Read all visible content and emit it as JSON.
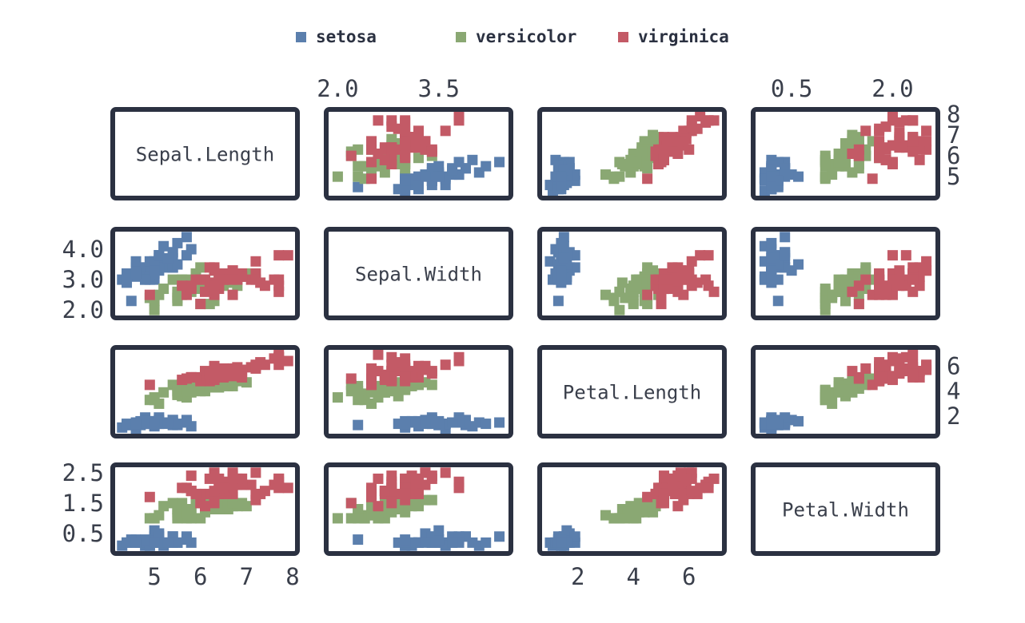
{
  "legend": {
    "items": [
      {
        "label": "setosa",
        "color": "#5b7fad"
      },
      {
        "label": "versicolor",
        "color": "#8aa873"
      },
      {
        "label": "virginica",
        "color": "#c35a66"
      }
    ]
  },
  "chart_data": {
    "type": "scatter",
    "subtype": "scatterplot-matrix",
    "variables": [
      "Sepal.Length",
      "Sepal.Width",
      "Petal.Length",
      "Petal.Width"
    ],
    "axis_ranges": {
      "Sepal.Length": [
        4.2,
        8.0
      ],
      "Sepal.Width": [
        1.9,
        4.5
      ],
      "Petal.Length": [
        0.8,
        7.1
      ],
      "Petal.Width": [
        0.0,
        2.6
      ]
    },
    "tick_labels": {
      "top_Sepal.Width": [
        "2.0",
        "3.5"
      ],
      "top_Petal.Width": [
        "0.5",
        "2.0"
      ],
      "right_Sepal.Length": [
        "8",
        "7",
        "6",
        "5"
      ],
      "right_Petal.Length": [
        "6",
        "4",
        "2"
      ],
      "left_Sepal.Width": [
        "4.0",
        "3.0",
        "2.0"
      ],
      "left_Petal.Width": [
        "2.5",
        "1.5",
        "0.5"
      ],
      "bottom_Sepal.Length": [
        "5",
        "6",
        "7",
        "8"
      ],
      "bottom_Petal.Length": [
        "2",
        "4",
        "6"
      ]
    },
    "tick_values": {
      "top_Sepal.Width": [
        2.0,
        3.5
      ],
      "top_Petal.Width": [
        0.5,
        2.0
      ],
      "right_Sepal.Length": [
        8,
        7,
        6,
        5
      ],
      "right_Petal.Length": [
        6,
        4,
        2
      ],
      "left_Sepal.Width": [
        4.0,
        3.0,
        2.0
      ],
      "left_Petal.Width": [
        2.5,
        1.5,
        0.5
      ],
      "bottom_Sepal.Length": [
        5,
        6,
        7,
        8
      ],
      "bottom_Petal.Length": [
        2,
        4,
        6
      ]
    },
    "grid": false,
    "legend_position": "top",
    "series": [
      {
        "name": "setosa",
        "color": "#5b7fad",
        "points": [
          [
            5.1,
            3.5,
            1.4,
            0.2
          ],
          [
            4.9,
            3.0,
            1.4,
            0.2
          ],
          [
            4.7,
            3.2,
            1.3,
            0.2
          ],
          [
            4.6,
            3.1,
            1.5,
            0.2
          ],
          [
            5.0,
            3.6,
            1.4,
            0.2
          ],
          [
            5.4,
            3.9,
            1.7,
            0.4
          ],
          [
            4.6,
            3.4,
            1.4,
            0.3
          ],
          [
            5.0,
            3.4,
            1.5,
            0.2
          ],
          [
            4.4,
            2.9,
            1.4,
            0.2
          ],
          [
            4.9,
            3.1,
            1.5,
            0.1
          ],
          [
            5.4,
            3.7,
            1.5,
            0.2
          ],
          [
            4.8,
            3.4,
            1.6,
            0.2
          ],
          [
            4.8,
            3.0,
            1.4,
            0.1
          ],
          [
            4.3,
            3.0,
            1.1,
            0.1
          ],
          [
            5.8,
            4.0,
            1.2,
            0.2
          ],
          [
            5.7,
            4.4,
            1.5,
            0.4
          ],
          [
            5.4,
            3.9,
            1.3,
            0.4
          ],
          [
            5.1,
            3.5,
            1.4,
            0.3
          ],
          [
            5.7,
            3.8,
            1.7,
            0.3
          ],
          [
            5.1,
            3.8,
            1.5,
            0.3
          ],
          [
            5.4,
            3.4,
            1.7,
            0.2
          ],
          [
            5.1,
            3.7,
            1.5,
            0.4
          ],
          [
            4.6,
            3.6,
            1.0,
            0.2
          ],
          [
            5.1,
            3.3,
            1.7,
            0.5
          ],
          [
            4.8,
            3.4,
            1.9,
            0.2
          ],
          [
            5.0,
            3.0,
            1.6,
            0.2
          ],
          [
            5.0,
            3.4,
            1.6,
            0.4
          ],
          [
            5.2,
            3.5,
            1.5,
            0.2
          ],
          [
            5.2,
            3.4,
            1.4,
            0.2
          ],
          [
            4.7,
            3.2,
            1.6,
            0.2
          ],
          [
            4.8,
            3.1,
            1.6,
            0.2
          ],
          [
            5.4,
            3.4,
            1.5,
            0.4
          ],
          [
            5.2,
            4.1,
            1.5,
            0.1
          ],
          [
            5.5,
            4.2,
            1.4,
            0.2
          ],
          [
            4.9,
            3.1,
            1.5,
            0.2
          ],
          [
            5.0,
            3.2,
            1.2,
            0.2
          ],
          [
            5.5,
            3.5,
            1.3,
            0.2
          ],
          [
            4.9,
            3.6,
            1.4,
            0.1
          ],
          [
            4.4,
            3.0,
            1.3,
            0.2
          ],
          [
            5.1,
            3.4,
            1.5,
            0.2
          ],
          [
            5.0,
            3.5,
            1.3,
            0.3
          ],
          [
            4.5,
            2.3,
            1.3,
            0.3
          ],
          [
            4.4,
            3.2,
            1.3,
            0.2
          ],
          [
            5.0,
            3.5,
            1.6,
            0.6
          ],
          [
            5.1,
            3.8,
            1.9,
            0.4
          ],
          [
            4.8,
            3.0,
            1.4,
            0.3
          ],
          [
            5.1,
            3.8,
            1.6,
            0.2
          ],
          [
            4.6,
            3.2,
            1.4,
            0.2
          ],
          [
            5.3,
            3.7,
            1.5,
            0.2
          ],
          [
            5.0,
            3.3,
            1.4,
            0.2
          ]
        ]
      },
      {
        "name": "versicolor",
        "color": "#8aa873",
        "points": [
          [
            7.0,
            3.2,
            4.7,
            1.4
          ],
          [
            6.4,
            3.2,
            4.5,
            1.5
          ],
          [
            6.9,
            3.1,
            4.9,
            1.5
          ],
          [
            5.5,
            2.3,
            4.0,
            1.3
          ],
          [
            6.5,
            2.8,
            4.6,
            1.5
          ],
          [
            5.7,
            2.8,
            4.5,
            1.3
          ],
          [
            6.3,
            3.3,
            4.7,
            1.6
          ],
          [
            4.9,
            2.4,
            3.3,
            1.0
          ],
          [
            6.6,
            2.9,
            4.6,
            1.3
          ],
          [
            5.2,
            2.7,
            3.9,
            1.4
          ],
          [
            5.0,
            2.0,
            3.5,
            1.0
          ],
          [
            5.9,
            3.0,
            4.2,
            1.5
          ],
          [
            6.0,
            2.2,
            4.0,
            1.0
          ],
          [
            6.1,
            2.9,
            4.7,
            1.4
          ],
          [
            5.6,
            2.9,
            3.6,
            1.3
          ],
          [
            6.7,
            3.1,
            4.4,
            1.4
          ],
          [
            5.6,
            3.0,
            4.5,
            1.5
          ],
          [
            5.8,
            2.7,
            4.1,
            1.0
          ],
          [
            6.2,
            2.2,
            4.5,
            1.5
          ],
          [
            5.6,
            2.5,
            3.9,
            1.1
          ],
          [
            5.9,
            3.2,
            4.8,
            1.8
          ],
          [
            6.1,
            2.8,
            4.0,
            1.3
          ],
          [
            6.3,
            2.5,
            4.9,
            1.5
          ],
          [
            6.1,
            2.8,
            4.7,
            1.2
          ],
          [
            6.4,
            2.9,
            4.3,
            1.3
          ],
          [
            6.6,
            3.0,
            4.4,
            1.4
          ],
          [
            6.8,
            2.8,
            4.8,
            1.4
          ],
          [
            6.7,
            3.0,
            5.0,
            1.7
          ],
          [
            6.0,
            2.9,
            4.5,
            1.5
          ],
          [
            5.7,
            2.6,
            3.5,
            1.0
          ],
          [
            5.5,
            2.4,
            3.8,
            1.1
          ],
          [
            5.5,
            2.4,
            3.7,
            1.0
          ],
          [
            5.8,
            2.7,
            3.9,
            1.2
          ],
          [
            6.0,
            2.7,
            5.1,
            1.6
          ],
          [
            5.4,
            3.0,
            4.5,
            1.5
          ],
          [
            6.0,
            3.4,
            4.5,
            1.6
          ],
          [
            6.7,
            3.1,
            4.7,
            1.5
          ],
          [
            6.3,
            2.3,
            4.4,
            1.3
          ],
          [
            5.6,
            3.0,
            4.1,
            1.3
          ],
          [
            5.5,
            2.5,
            4.0,
            1.3
          ],
          [
            5.5,
            2.6,
            4.4,
            1.2
          ],
          [
            6.1,
            3.0,
            4.6,
            1.4
          ],
          [
            5.8,
            2.6,
            4.0,
            1.2
          ],
          [
            5.0,
            2.3,
            3.3,
            1.0
          ],
          [
            5.6,
            2.7,
            4.2,
            1.3
          ],
          [
            5.7,
            3.0,
            4.2,
            1.2
          ],
          [
            5.7,
            2.9,
            4.2,
            1.3
          ],
          [
            6.2,
            2.9,
            4.3,
            1.3
          ],
          [
            5.1,
            2.5,
            3.0,
            1.1
          ],
          [
            5.7,
            2.8,
            4.1,
            1.3
          ]
        ]
      },
      {
        "name": "virginica",
        "color": "#c35a66",
        "points": [
          [
            6.3,
            3.3,
            6.0,
            2.5
          ],
          [
            5.8,
            2.7,
            5.1,
            1.9
          ],
          [
            7.1,
            3.0,
            5.9,
            2.1
          ],
          [
            6.3,
            2.9,
            5.6,
            1.8
          ],
          [
            6.5,
            3.0,
            5.8,
            2.2
          ],
          [
            7.6,
            3.0,
            6.6,
            2.1
          ],
          [
            4.9,
            2.5,
            4.5,
            1.7
          ],
          [
            7.3,
            2.9,
            6.3,
            1.8
          ],
          [
            6.7,
            2.5,
            5.8,
            1.8
          ],
          [
            7.2,
            3.6,
            6.1,
            2.5
          ],
          [
            6.5,
            3.2,
            5.1,
            2.0
          ],
          [
            6.4,
            2.7,
            5.3,
            1.9
          ],
          [
            6.8,
            3.0,
            5.5,
            2.1
          ],
          [
            5.7,
            2.5,
            5.0,
            2.0
          ],
          [
            5.8,
            2.8,
            5.1,
            2.4
          ],
          [
            6.4,
            3.2,
            5.3,
            2.3
          ],
          [
            6.5,
            3.0,
            5.5,
            1.8
          ],
          [
            7.7,
            3.8,
            6.7,
            2.2
          ],
          [
            7.7,
            2.6,
            6.9,
            2.3
          ],
          [
            6.0,
            2.2,
            5.0,
            1.5
          ],
          [
            6.9,
            3.2,
            5.7,
            2.3
          ],
          [
            5.6,
            2.8,
            4.9,
            2.0
          ],
          [
            7.7,
            2.8,
            6.7,
            2.0
          ],
          [
            6.3,
            2.7,
            4.9,
            1.8
          ],
          [
            6.7,
            3.3,
            5.7,
            2.1
          ],
          [
            7.2,
            3.2,
            6.0,
            1.8
          ],
          [
            6.2,
            2.8,
            4.8,
            1.8
          ],
          [
            6.1,
            3.0,
            4.9,
            1.8
          ],
          [
            6.4,
            2.8,
            5.6,
            2.1
          ],
          [
            7.2,
            3.0,
            5.8,
            1.6
          ],
          [
            7.4,
            2.8,
            6.1,
            1.9
          ],
          [
            7.9,
            3.8,
            6.4,
            2.0
          ],
          [
            6.4,
            2.8,
            5.6,
            2.2
          ],
          [
            6.3,
            2.8,
            5.1,
            1.5
          ],
          [
            6.1,
            2.6,
            5.6,
            1.4
          ],
          [
            7.7,
            3.0,
            6.1,
            2.3
          ],
          [
            6.3,
            3.4,
            5.6,
            2.4
          ],
          [
            6.4,
            3.1,
            5.5,
            1.8
          ],
          [
            6.0,
            3.0,
            4.8,
            1.8
          ],
          [
            6.9,
            3.1,
            5.4,
            2.1
          ],
          [
            6.7,
            3.1,
            5.6,
            2.4
          ],
          [
            6.9,
            3.1,
            5.1,
            2.3
          ],
          [
            5.8,
            2.7,
            5.1,
            1.9
          ],
          [
            6.8,
            3.2,
            5.9,
            2.3
          ],
          [
            6.7,
            3.3,
            5.7,
            2.5
          ],
          [
            6.7,
            3.0,
            5.2,
            2.3
          ],
          [
            6.3,
            2.5,
            5.0,
            1.9
          ],
          [
            6.5,
            3.0,
            5.2,
            2.0
          ],
          [
            6.2,
            3.4,
            5.4,
            2.3
          ],
          [
            5.9,
            3.0,
            5.1,
            1.8
          ]
        ]
      }
    ]
  }
}
